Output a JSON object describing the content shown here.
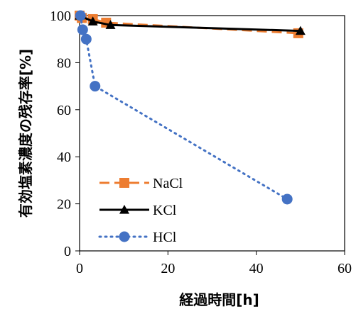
{
  "chart_data": {
    "type": "line",
    "xlabel": "経過時間[h]",
    "ylabel": "有効塩素濃度の残存率[%]",
    "xlim": [
      0,
      60
    ],
    "ylim": [
      0,
      100
    ],
    "xticks": [
      0,
      20,
      40,
      60
    ],
    "yticks": [
      0,
      20,
      40,
      60,
      80,
      100
    ],
    "grid": false,
    "legend_position": "bottom-left",
    "series": [
      {
        "name": "NaCl",
        "color": "#ED7D31",
        "line_style": "dashed",
        "marker": "square",
        "x": [
          0,
          0.5,
          3,
          6,
          49.5
        ],
        "y": [
          100,
          99,
          98.5,
          97,
          92.5
        ]
      },
      {
        "name": "KCl",
        "color": "#000000",
        "line_style": "solid",
        "marker": "triangle",
        "x": [
          0,
          3,
          7,
          50
        ],
        "y": [
          100,
          97.5,
          96,
          93.5
        ]
      },
      {
        "name": "HCl",
        "color": "#4472C4",
        "line_style": "dotted",
        "marker": "circle",
        "x": [
          0.2,
          0.7,
          1.5,
          3.5,
          47
        ],
        "y": [
          100,
          94,
          90,
          70,
          22
        ]
      }
    ]
  }
}
